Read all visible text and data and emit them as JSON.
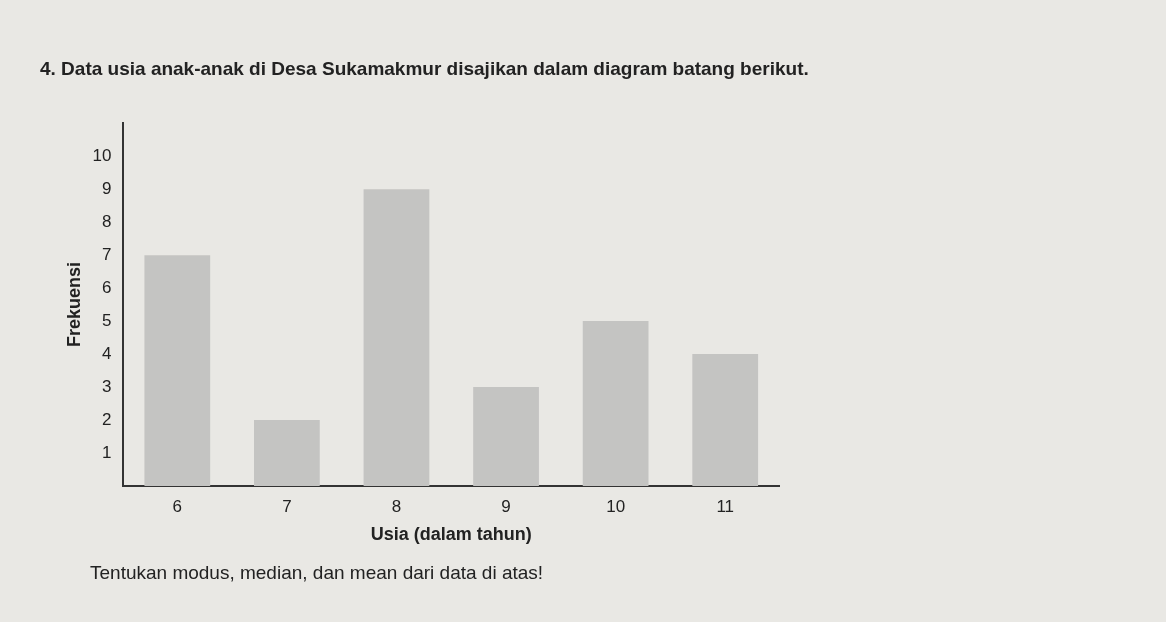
{
  "chart_data": {
    "type": "bar",
    "title": "4. Data usia anak-anak di Desa Sukamakmur disajikan dalam diagram batang berikut.",
    "xlabel": "Usia (dalam tahun)",
    "ylabel": "Frekuensi",
    "categories": [
      "6",
      "7",
      "8",
      "9",
      "10",
      "11"
    ],
    "values": [
      7,
      2,
      9,
      3,
      5,
      4
    ],
    "color": "#c4c4c2",
    "ylim": [
      0,
      11
    ],
    "yticks": [
      1,
      2,
      3,
      4,
      5,
      6,
      7,
      8,
      9,
      10
    ],
    "grid": false,
    "legend": false,
    "annotations": [
      "Tentukan modus, median, dan mean dari data di atas!"
    ]
  }
}
